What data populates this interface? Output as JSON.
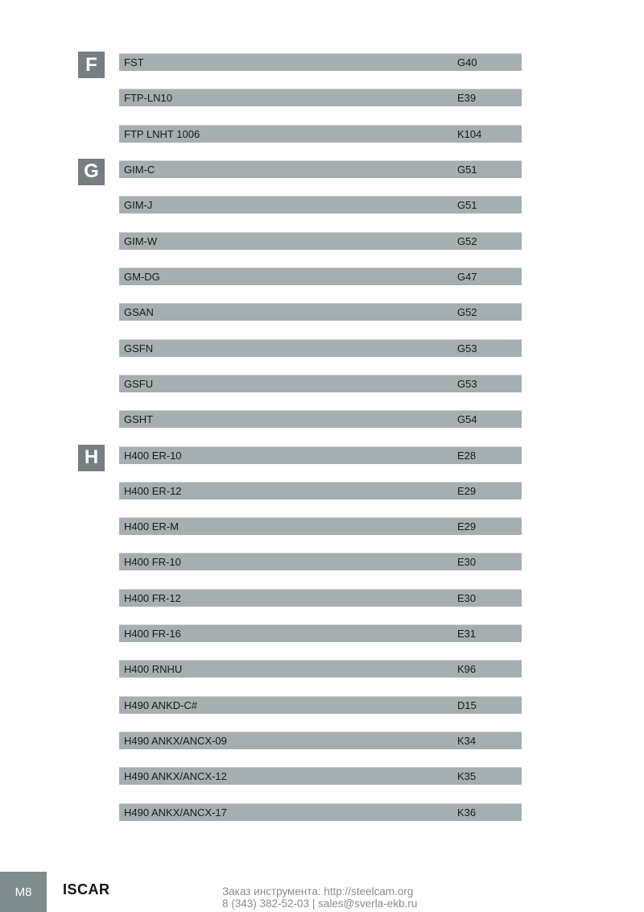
{
  "index": {
    "sections": [
      {
        "letter": "F",
        "entries": [
          {
            "code": "FST",
            "page": "G40"
          },
          {
            "code": "FTP-LN10",
            "page": "E39"
          },
          {
            "code": "FTP LNHT 1006",
            "page": "K104"
          }
        ]
      },
      {
        "letter": "G",
        "entries": [
          {
            "code": "GIM-C",
            "page": "G51"
          },
          {
            "code": "GIM-J",
            "page": "G51"
          },
          {
            "code": "GIM-W",
            "page": "G52"
          },
          {
            "code": "GM-DG",
            "page": "G47"
          },
          {
            "code": "GSAN",
            "page": "G52"
          },
          {
            "code": "GSFN",
            "page": "G53"
          },
          {
            "code": "GSFU",
            "page": "G53"
          },
          {
            "code": "GSHT",
            "page": "G54"
          }
        ]
      },
      {
        "letter": "H",
        "entries": [
          {
            "code": "H400 ER-10",
            "page": "E28"
          },
          {
            "code": "H400 ER-12",
            "page": "E29"
          },
          {
            "code": "H400 ER-M",
            "page": "E29"
          },
          {
            "code": "H400 FR-10",
            "page": "E30"
          },
          {
            "code": "H400 FR-12",
            "page": "E30"
          },
          {
            "code": "H400 FR-16",
            "page": "E31"
          },
          {
            "code": "H400 RNHU",
            "page": "K96"
          },
          {
            "code": "H490 ANKD-C#",
            "page": "D15"
          },
          {
            "code": "H490 ANKX/ANCX-09",
            "page": "K34"
          },
          {
            "code": "H490 ANKX/ANCX-12",
            "page": "K35"
          },
          {
            "code": "H490 ANKX/ANCX-17",
            "page": "K36"
          }
        ]
      }
    ]
  },
  "footer": {
    "page_label": "M8",
    "brand": "ISCAR",
    "order_line1": "Заказ инструмента: http://steelcam.org",
    "order_line2": "8 (343) 382-52-03  |  sales@sverla-ekb.ru"
  },
  "colors": {
    "bar_fill": "#a5afb1",
    "badge_fill": "#757f82",
    "footer_box_fill": "#7e8c8e",
    "bar_text": "#1b1b1b",
    "footer_text": "#8c8c8c"
  }
}
